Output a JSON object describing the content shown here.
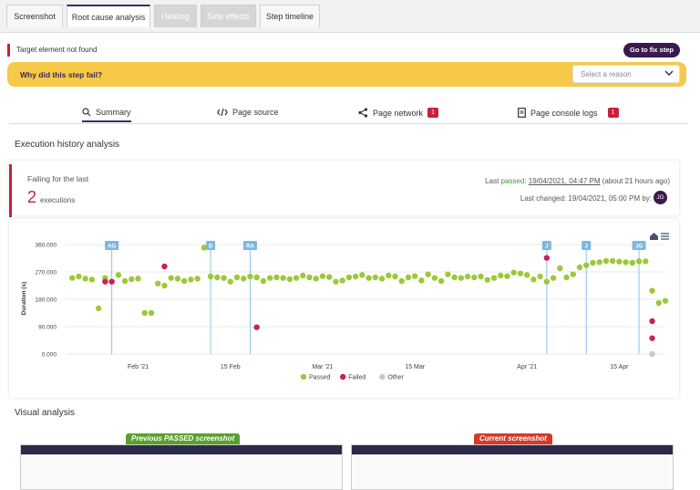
{
  "tabs": [
    {
      "label": "Screenshot",
      "state": "normal"
    },
    {
      "label": "Root cause analysis",
      "state": "active"
    },
    {
      "label": "Healing",
      "state": "disabled"
    },
    {
      "label": "Side effects",
      "state": "disabled"
    },
    {
      "label": "Step timeline",
      "state": "normal"
    }
  ],
  "alert": {
    "message": "Target element not found",
    "fix_button": "Go to fix step"
  },
  "why": {
    "question": "Why did this step fail?",
    "placeholder": "Select a reason"
  },
  "subtabs": [
    {
      "label": "Summary",
      "icon": "magnifier-icon",
      "badge": ""
    },
    {
      "label": "Page source",
      "icon": "code-icon",
      "badge": ""
    },
    {
      "label": "Page network",
      "icon": "share-icon",
      "badge": "1"
    },
    {
      "label": "Page console logs",
      "icon": "document-icon",
      "badge": "1"
    }
  ],
  "history": {
    "title": "Execution history analysis",
    "failing_label": "Failing for the last",
    "failing_count": "2",
    "failing_unit": "executions",
    "last_passed_prefix": "Last ",
    "last_passed_word": "passed",
    "last_passed_date": "19/04/2021, 04:47 PM",
    "last_passed_suffix": " (about 21 hours ago)",
    "last_changed": "Last changed: 19/04/2021, 05:00 PM by:",
    "avatar_initials": "JG"
  },
  "chart_data": {
    "type": "scatter",
    "ylabel": "Duration (s)",
    "yticks": [
      "360.000",
      "270.000",
      "180.000",
      "90.000",
      "0.000"
    ],
    "ylim": [
      0,
      360
    ],
    "xticks": [
      {
        "label": "Feb '21",
        "day": 7
      },
      {
        "label": "15 Feb",
        "day": 21
      },
      {
        "label": "Mar '21",
        "day": 35
      },
      {
        "label": "15 Mar",
        "day": 49
      },
      {
        "label": "Apr '21",
        "day": 66
      },
      {
        "label": "15 Apr",
        "day": 80
      }
    ],
    "xlim": [
      -4,
      83
    ],
    "markers": [
      {
        "label": "AG",
        "day": 3
      },
      {
        "label": "D",
        "day": 18
      },
      {
        "label": "RA",
        "day": 24
      },
      {
        "label": "J",
        "day": 69
      },
      {
        "label": "J",
        "day": 75
      },
      {
        "label": "JG",
        "day": 83
      }
    ],
    "legend": [
      {
        "name": "Passed",
        "color": "#9cc83a"
      },
      {
        "name": "Failed",
        "color": "#c8205a"
      },
      {
        "name": "Other",
        "color": "#c8c8c8"
      }
    ],
    "legend_position": "bottom",
    "passed": [
      [
        -3,
        250
      ],
      [
        -2,
        255
      ],
      [
        -1,
        248
      ],
      [
        0,
        245
      ],
      [
        1,
        150
      ],
      [
        2,
        250
      ],
      [
        3,
        238
      ],
      [
        4,
        260
      ],
      [
        5,
        240
      ],
      [
        6,
        246
      ],
      [
        7,
        248
      ],
      [
        8,
        135
      ],
      [
        9,
        135
      ],
      [
        10,
        232
      ],
      [
        11,
        225
      ],
      [
        12,
        250
      ],
      [
        13,
        248
      ],
      [
        14,
        240
      ],
      [
        15,
        245
      ],
      [
        16,
        248
      ],
      [
        17,
        350
      ],
      [
        18,
        255
      ],
      [
        19,
        252
      ],
      [
        20,
        250
      ],
      [
        21,
        238
      ],
      [
        22,
        252
      ],
      [
        23,
        248
      ],
      [
        24,
        255
      ],
      [
        25,
        252
      ],
      [
        26,
        240
      ],
      [
        27,
        250
      ],
      [
        28,
        252
      ],
      [
        29,
        250
      ],
      [
        30,
        246
      ],
      [
        31,
        250
      ],
      [
        32,
        258
      ],
      [
        33,
        252
      ],
      [
        34,
        248
      ],
      [
        35,
        256
      ],
      [
        36,
        253
      ],
      [
        37,
        238
      ],
      [
        38,
        242
      ],
      [
        39,
        252
      ],
      [
        40,
        255
      ],
      [
        41,
        260
      ],
      [
        42,
        250
      ],
      [
        43,
        252
      ],
      [
        44,
        248
      ],
      [
        45,
        258
      ],
      [
        46,
        255
      ],
      [
        47,
        240
      ],
      [
        48,
        252
      ],
      [
        49,
        256
      ],
      [
        50,
        242
      ],
      [
        51,
        262
      ],
      [
        52,
        250
      ],
      [
        53,
        240
      ],
      [
        54,
        262
      ],
      [
        55,
        252
      ],
      [
        56,
        250
      ],
      [
        57,
        255
      ],
      [
        58,
        252
      ],
      [
        59,
        255
      ],
      [
        60,
        244
      ],
      [
        61,
        250
      ],
      [
        62,
        258
      ],
      [
        63,
        256
      ],
      [
        64,
        268
      ],
      [
        65,
        265
      ],
      [
        66,
        260
      ],
      [
        67,
        245
      ],
      [
        68,
        255
      ],
      [
        69,
        238
      ],
      [
        70,
        250
      ],
      [
        71,
        282
      ],
      [
        72,
        252
      ],
      [
        73,
        262
      ],
      [
        74,
        285
      ],
      [
        75,
        292
      ],
      [
        76,
        300
      ],
      [
        77,
        302
      ],
      [
        78,
        306
      ],
      [
        79,
        306
      ],
      [
        80,
        304
      ],
      [
        81,
        302
      ],
      [
        82,
        300
      ],
      [
        83,
        305
      ],
      [
        84,
        305
      ],
      [
        85,
        208
      ],
      [
        86,
        168
      ],
      [
        87,
        175
      ]
    ],
    "failed": [
      [
        2,
        238
      ],
      [
        3,
        238
      ],
      [
        11,
        288
      ],
      [
        25,
        88
      ],
      [
        69,
        316
      ],
      [
        85,
        108
      ],
      [
        85,
        52
      ]
    ],
    "other": [
      [
        85,
        0
      ]
    ]
  },
  "visual": {
    "title": "Visual analysis",
    "prev_label": "Previous PASSED screenshot",
    "curr_label": "Current screenshot",
    "prev_color": "#5aa02c",
    "curr_color": "#d63a2a"
  }
}
